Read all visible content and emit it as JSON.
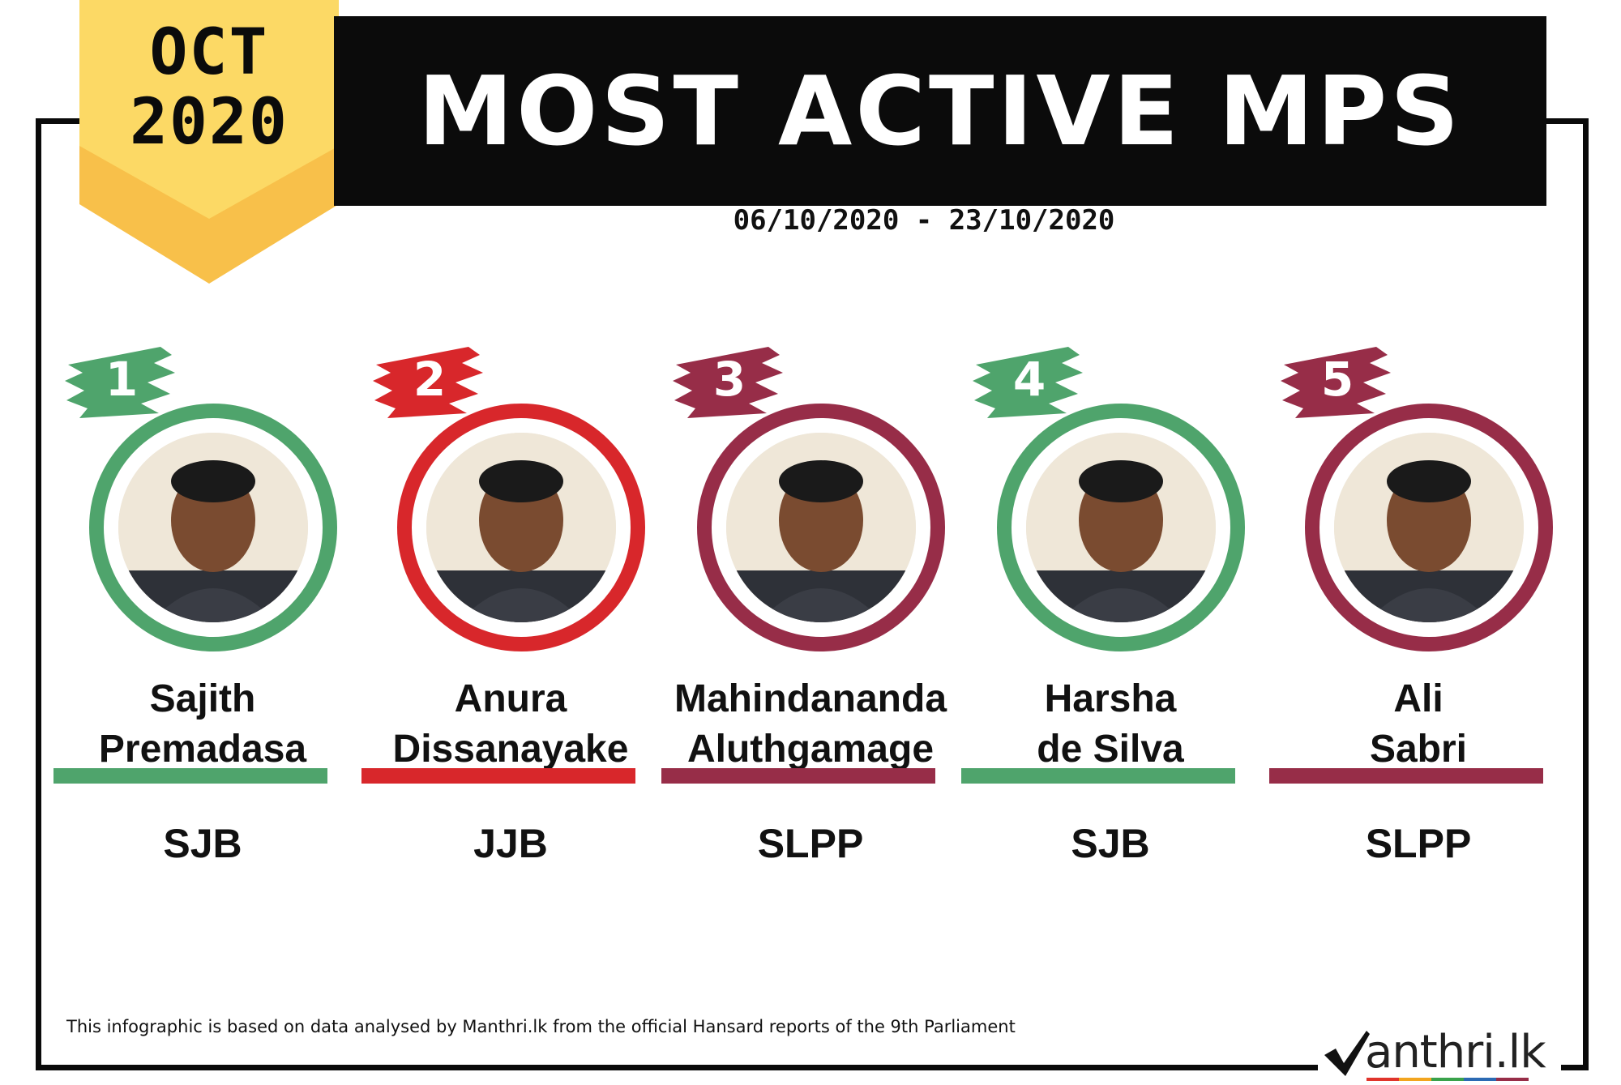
{
  "header": {
    "month": "OCT",
    "year": "2020",
    "title": "MOST ACTIVE MPS",
    "date_range": "06/10/2020 - 23/10/2020"
  },
  "colors": {
    "green": "#4fa46c",
    "red": "#d8272b",
    "maroon": "#972d48",
    "ribbon_top": "#fcd965",
    "ribbon_bottom": "#f8c04a",
    "banner": "#0b0b0b"
  },
  "mps": [
    {
      "rank": "1",
      "first": "Sajith",
      "last": "Premadasa",
      "party": "SJB",
      "color": "#4fa46c"
    },
    {
      "rank": "2",
      "first": "Anura",
      "last": "Dissanayake",
      "party": "JJB",
      "color": "#d8272b"
    },
    {
      "rank": "3",
      "first": "Mahindananda",
      "last": "Aluthgamage",
      "party": "SLPP",
      "color": "#972d48"
    },
    {
      "rank": "4",
      "first": "Harsha",
      "last": "de Silva",
      "party": "SJB",
      "color": "#4fa46c"
    },
    {
      "rank": "5",
      "first": "Ali",
      "last": "Sabri",
      "party": "SLPP",
      "color": "#972d48"
    }
  ],
  "footer": {
    "note": "This infographic is based on data analysed by Manthri.lk from the official Hansard reports of the 9th Parliament",
    "logo_text": "anthri.lk",
    "logo_icon": "checkmark-m-icon"
  }
}
